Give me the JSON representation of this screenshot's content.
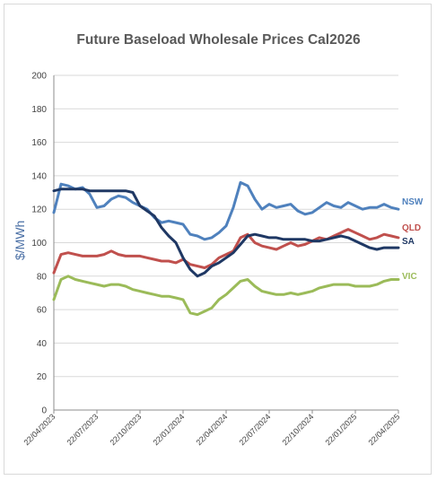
{
  "chart_data": {
    "type": "line",
    "title": "Future Baseload Wholesale Prices Cal2026",
    "ylabel": "$/MWh",
    "xlabel": "",
    "ylim": [
      0,
      200
    ],
    "yticks": [
      "0",
      "20",
      "40",
      "60",
      "80",
      "100",
      "120",
      "140",
      "160",
      "180",
      "200"
    ],
    "xticks": [
      "22/04/2023",
      "22/07/2023",
      "22/10/2023",
      "22/01/2024",
      "22/04/2024",
      "22/07/2024",
      "22/10/2024",
      "22/01/2025",
      "22/04/2025"
    ],
    "grid": "horizontal",
    "legend": "line-end labels",
    "x": [
      "22/04/2023",
      "07/05/2023",
      "22/05/2023",
      "06/06/2023",
      "22/06/2023",
      "07/07/2023",
      "22/07/2023",
      "06/08/2023",
      "22/08/2023",
      "06/09/2023",
      "22/09/2023",
      "07/10/2023",
      "22/10/2023",
      "06/11/2023",
      "22/11/2023",
      "07/12/2023",
      "22/12/2023",
      "06/01/2024",
      "22/01/2024",
      "06/02/2024",
      "22/02/2024",
      "07/03/2024",
      "22/03/2024",
      "06/04/2024",
      "22/04/2024",
      "07/05/2024",
      "22/05/2024",
      "06/06/2024",
      "22/06/2024",
      "07/07/2024",
      "22/07/2024",
      "06/08/2024",
      "22/08/2024",
      "06/09/2024",
      "22/09/2024",
      "07/10/2024",
      "22/10/2024",
      "06/11/2024",
      "22/11/2024",
      "07/12/2024",
      "22/12/2024",
      "06/01/2025",
      "22/01/2025",
      "06/02/2025",
      "22/02/2025",
      "07/03/2025",
      "22/03/2025",
      "06/04/2025",
      "22/04/2025"
    ],
    "series": [
      {
        "name": "NSW",
        "color": "#4f81bd",
        "values": [
          118,
          135,
          134,
          132,
          133,
          129,
          121,
          122,
          126,
          128,
          127,
          124,
          122,
          120,
          115,
          112,
          113,
          112,
          111,
          105,
          104,
          102,
          103,
          106,
          110,
          121,
          136,
          134,
          126,
          120,
          123,
          121,
          122,
          123,
          119,
          117,
          118,
          121,
          124,
          122,
          121,
          124,
          122,
          120,
          121,
          121,
          123,
          121,
          120
        ]
      },
      {
        "name": "QLD",
        "color": "#c0504d",
        "values": [
          82,
          93,
          94,
          93,
          92,
          92,
          92,
          93,
          95,
          93,
          92,
          92,
          92,
          91,
          90,
          89,
          89,
          88,
          90,
          87,
          86,
          85,
          87,
          91,
          93,
          95,
          103,
          105,
          100,
          98,
          97,
          96,
          98,
          100,
          98,
          99,
          101,
          103,
          102,
          104,
          106,
          108,
          106,
          104,
          102,
          103,
          105,
          104,
          103
        ]
      },
      {
        "name": "SA",
        "color": "#1f3864",
        "values": [
          131,
          132,
          132,
          132,
          132,
          131,
          131,
          131,
          131,
          131,
          131,
          130,
          122,
          119,
          116,
          109,
          104,
          100,
          91,
          84,
          80,
          82,
          86,
          88,
          91,
          94,
          99,
          104,
          105,
          104,
          103,
          103,
          102,
          102,
          102,
          102,
          101,
          101,
          102,
          103,
          104,
          103,
          101,
          99,
          97,
          96,
          97,
          97,
          97
        ]
      },
      {
        "name": "VIC",
        "color": "#9bbb59",
        "values": [
          66,
          78,
          80,
          78,
          77,
          76,
          75,
          74,
          75,
          75,
          74,
          72,
          71,
          70,
          69,
          68,
          68,
          67,
          66,
          58,
          57,
          59,
          61,
          66,
          69,
          73,
          77,
          78,
          74,
          71,
          70,
          69,
          69,
          70,
          69,
          70,
          71,
          73,
          74,
          75,
          75,
          75,
          74,
          74,
          74,
          75,
          77,
          78,
          78
        ]
      }
    ]
  }
}
